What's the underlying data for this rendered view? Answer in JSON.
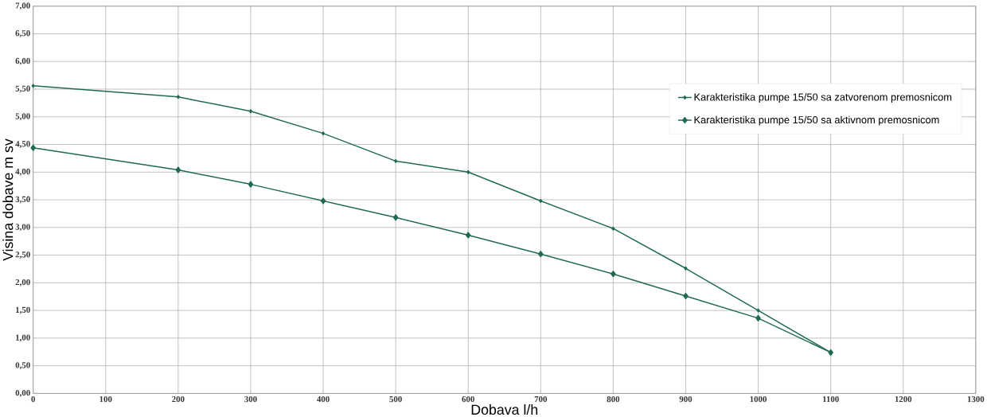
{
  "chart_data": {
    "type": "line",
    "xlabel": "Dobava l/h",
    "ylabel": "Visina dobave m sv",
    "x": [
      0,
      200,
      300,
      400,
      500,
      600,
      700,
      800,
      900,
      1000,
      1100
    ],
    "series": [
      {
        "name": "Karakteristika pumpe 15/50 sa zatvorenom premosnicom",
        "color": "#1f6b50",
        "values": [
          5.56,
          5.36,
          5.1,
          4.7,
          4.2,
          4.0,
          3.48,
          2.98,
          2.26,
          1.5,
          0.74
        ]
      },
      {
        "name": "Karakteristika pumpe 15/50 sa aktivnom premosnicom",
        "color": "#1f6b50",
        "values": [
          4.44,
          4.04,
          3.78,
          3.48,
          3.18,
          2.86,
          2.52,
          2.16,
          1.76,
          1.36,
          0.74
        ]
      }
    ],
    "xlim": [
      0,
      1300
    ],
    "xticks": [
      0,
      100,
      200,
      300,
      400,
      500,
      600,
      700,
      800,
      900,
      1000,
      1100,
      1200,
      1300
    ],
    "ylim": [
      0,
      7
    ],
    "yticks": [
      {
        "value": 0,
        "label": "0,00"
      },
      {
        "value": 0.5,
        "label": "0,50"
      },
      {
        "value": 1,
        "label": "1,00"
      },
      {
        "value": 1.5,
        "label": "1,50"
      },
      {
        "value": 2,
        "label": "2,00"
      },
      {
        "value": 2.5,
        "label": "2,50"
      },
      {
        "value": 3,
        "label": "3,00"
      },
      {
        "value": 3.5,
        "label": "3,50"
      },
      {
        "value": 4,
        "label": "4,00"
      },
      {
        "value": 4.5,
        "label": "4,50"
      },
      {
        "value": 5,
        "label": "5,00"
      },
      {
        "value": 5.5,
        "label": "5,50"
      },
      {
        "value": 6,
        "label": "6,00"
      },
      {
        "value": 6.5,
        "label": "6,50"
      },
      {
        "value": 7,
        "label": "7,00"
      }
    ],
    "grid": true,
    "legend": "top right",
    "marker": "diamond",
    "line_style": "solid"
  }
}
